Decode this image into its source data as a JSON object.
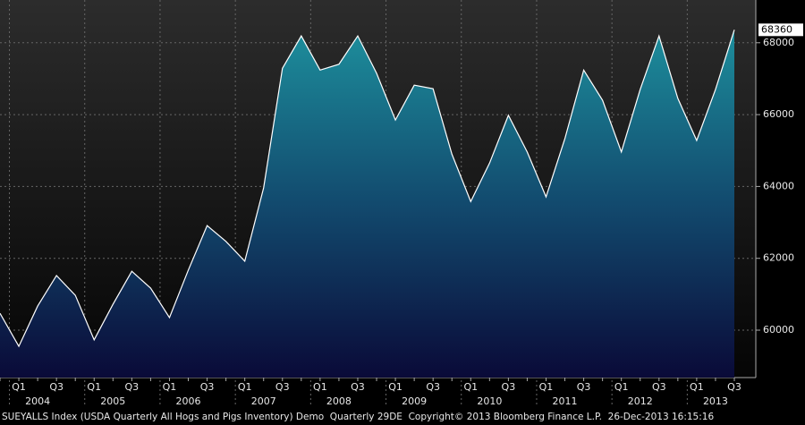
{
  "chart_data": {
    "type": "area",
    "categories": [
      null,
      "Q1",
      null,
      "Q3",
      null,
      "Q1",
      null,
      "Q3",
      null,
      "Q1",
      null,
      "Q3",
      null,
      "Q1",
      null,
      "Q3",
      null,
      "Q1",
      null,
      "Q3",
      null,
      "Q1",
      null,
      "Q3",
      null,
      "Q1",
      null,
      "Q3",
      null,
      "Q1",
      null,
      "Q3",
      null,
      "Q1",
      null,
      "Q3",
      null,
      "Q1",
      null,
      "Q3"
    ],
    "years": [
      "2004",
      "2005",
      "2006",
      "2007",
      "2008",
      "2009",
      "2010",
      "2011",
      "2012",
      "2013"
    ],
    "values": [
      60470,
      59550,
      60670,
      61520,
      60970,
      59730,
      60720,
      61640,
      61170,
      60350,
      61670,
      62910,
      62470,
      61920,
      63960,
      67290,
      68190,
      67240,
      67400,
      68190,
      67150,
      65850,
      66820,
      66720,
      64900,
      63580,
      64650,
      65980,
      64960,
      63710,
      65330,
      67240,
      66400,
      64960,
      66700,
      68190,
      66450,
      65280,
      66700,
      68360
    ],
    "color": "#ffffff",
    "ylim": [
      58680,
      69190
    ],
    "yticks": [
      60000,
      62000,
      64000,
      66000,
      68000
    ],
    "grid": true,
    "footer": "SUEYALLS Index (USDA Quarterly All Hogs and Pigs Inventory) Demo  Quarterly 29DE  Copyright© 2013 Bloomberg Finance L.P.  26-Dec-2013 16:15:16"
  }
}
